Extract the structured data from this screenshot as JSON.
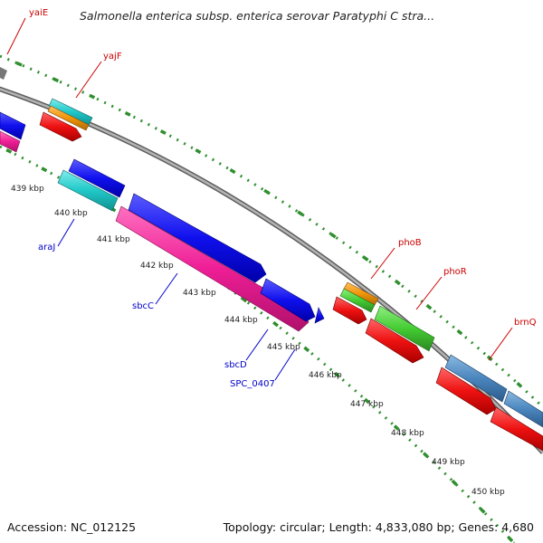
{
  "title": "Salmonella enterica subsp. enterica serovar Paratyphi C stra...",
  "footer": {
    "accession": "Accession: NC_012125",
    "summary": "Topology: circular; Length: 4,833,080 bp; Genes: 4,680"
  },
  "ticks": [
    {
      "label": "439 kbp"
    },
    {
      "label": "440 kbp"
    },
    {
      "label": "441 kbp"
    },
    {
      "label": "442 kbp"
    },
    {
      "label": "443 kbp"
    },
    {
      "label": "444 kbp"
    },
    {
      "label": "445 kbp"
    },
    {
      "label": "446 kbp"
    },
    {
      "label": "447 kbp"
    },
    {
      "label": "448 kbp"
    },
    {
      "label": "449 kbp"
    },
    {
      "label": "450 kbp"
    }
  ],
  "gene_labels": [
    {
      "text": "yaiE",
      "color": "#cc0000"
    },
    {
      "text": "yajF",
      "color": "#cc0000"
    },
    {
      "text": "araJ",
      "color": "#0000cc"
    },
    {
      "text": "sbcC",
      "color": "#0000cc"
    },
    {
      "text": "sbcD",
      "color": "#0000cc"
    },
    {
      "text": "SPC_0407",
      "color": "#0000cc"
    },
    {
      "text": "phoB",
      "color": "#cc0000"
    },
    {
      "text": "phoR",
      "color": "#cc0000"
    },
    {
      "text": "brnQ",
      "color": "#cc0000"
    }
  ],
  "colors": {
    "backbone": "#8c8c8c",
    "tick_dots": "#2f8f2f",
    "red": "#ee1111",
    "blue": "#1010ee",
    "magenta": "#ee1e96",
    "cyan": "#20c8c8",
    "orange": "#f0940a",
    "green": "#44cc33",
    "steel": "#4a86be"
  }
}
